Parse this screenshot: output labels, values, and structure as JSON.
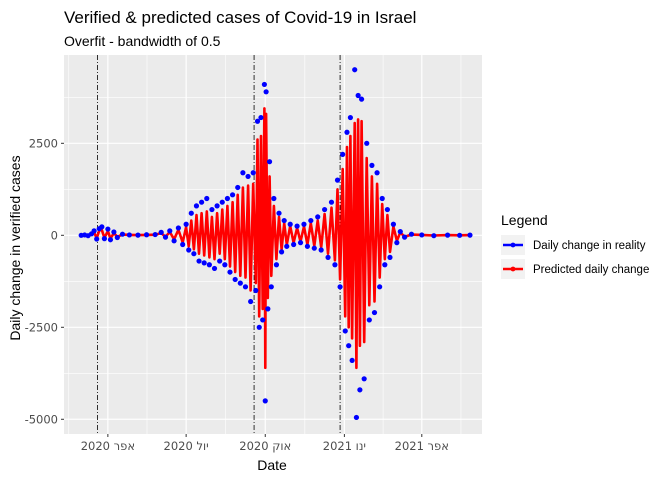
{
  "chart_data": {
    "type": "line",
    "title": "Verified & predicted cases of Covid-19 in Israel",
    "subtitle": "Overfit - bandwidth of 0.5",
    "xlabel": "Date",
    "ylabel": "Daily change in verified cases",
    "xlim": [
      "2020-02-10",
      "2021-06-10"
    ],
    "ylim": [
      -5400,
      4900
    ],
    "x_ticks": [
      {
        "date": "2020-04-01",
        "label": "אפר 2020"
      },
      {
        "date": "2020-07-01",
        "label": "יול 2020"
      },
      {
        "date": "2020-10-01",
        "label": "אוק 2020"
      },
      {
        "date": "2021-01-01",
        "label": "ינו 2021"
      },
      {
        "date": "2021-04-01",
        "label": "אפר 2021"
      }
    ],
    "y_ticks": [
      -5000,
      -2500,
      0,
      2500
    ],
    "vlines": [
      "2020-03-20",
      "2020-09-18",
      "2020-12-27"
    ],
    "grid": true,
    "legend": {
      "title": "Legend",
      "position": "right"
    },
    "series": [
      {
        "name": "Daily change in reality",
        "color": "#0000ff",
        "style": "points",
        "points": [
          [
            "2020-03-01",
            0
          ],
          [
            "2020-03-05",
            10
          ],
          [
            "2020-03-09",
            -10
          ],
          [
            "2020-03-13",
            40
          ],
          [
            "2020-03-16",
            120
          ],
          [
            "2020-03-19",
            -100
          ],
          [
            "2020-03-22",
            180
          ],
          [
            "2020-03-25",
            230
          ],
          [
            "2020-03-28",
            -90
          ],
          [
            "2020-04-01",
            170
          ],
          [
            "2020-04-04",
            -120
          ],
          [
            "2020-04-08",
            90
          ],
          [
            "2020-04-12",
            -60
          ],
          [
            "2020-04-18",
            30
          ],
          [
            "2020-04-26",
            10
          ],
          [
            "2020-05-06",
            5
          ],
          [
            "2020-05-16",
            15
          ],
          [
            "2020-05-26",
            20
          ],
          [
            "2020-06-02",
            80
          ],
          [
            "2020-06-07",
            -50
          ],
          [
            "2020-06-12",
            120
          ],
          [
            "2020-06-17",
            -150
          ],
          [
            "2020-06-22",
            200
          ],
          [
            "2020-06-27",
            -250
          ],
          [
            "2020-07-01",
            300
          ],
          [
            "2020-07-04",
            -400
          ],
          [
            "2020-07-07",
            600
          ],
          [
            "2020-07-10",
            -500
          ],
          [
            "2020-07-13",
            800
          ],
          [
            "2020-07-16",
            -700
          ],
          [
            "2020-07-19",
            900
          ],
          [
            "2020-07-22",
            -750
          ],
          [
            "2020-07-25",
            1000
          ],
          [
            "2020-07-28",
            -800
          ],
          [
            "2020-07-31",
            700
          ],
          [
            "2020-08-03",
            -900
          ],
          [
            "2020-08-06",
            800
          ],
          [
            "2020-08-09",
            -700
          ],
          [
            "2020-08-12",
            900
          ],
          [
            "2020-08-15",
            -800
          ],
          [
            "2020-08-18",
            1000
          ],
          [
            "2020-08-21",
            -1000
          ],
          [
            "2020-08-24",
            1100
          ],
          [
            "2020-08-27",
            -1200
          ],
          [
            "2020-08-30",
            1300
          ],
          [
            "2020-09-02",
            -1300
          ],
          [
            "2020-09-05",
            1700
          ],
          [
            "2020-09-08",
            -1400
          ],
          [
            "2020-09-11",
            1600
          ],
          [
            "2020-09-14",
            -1800
          ],
          [
            "2020-09-17",
            1700
          ],
          [
            "2020-09-20",
            -1500
          ],
          [
            "2020-09-22",
            3100
          ],
          [
            "2020-09-24",
            -2500
          ],
          [
            "2020-09-26",
            3200
          ],
          [
            "2020-09-28",
            -2300
          ],
          [
            "2020-09-30",
            4100
          ],
          [
            "2020-10-01",
            -4500
          ],
          [
            "2020-10-02",
            3900
          ],
          [
            "2020-10-04",
            -2000
          ],
          [
            "2020-10-06",
            2000
          ],
          [
            "2020-10-08",
            -1400
          ],
          [
            "2020-10-11",
            1000
          ],
          [
            "2020-10-14",
            -800
          ],
          [
            "2020-10-17",
            600
          ],
          [
            "2020-10-20",
            -450
          ],
          [
            "2020-10-23",
            400
          ],
          [
            "2020-10-26",
            -300
          ],
          [
            "2020-10-30",
            300
          ],
          [
            "2020-11-03",
            -250
          ],
          [
            "2020-11-07",
            250
          ],
          [
            "2020-11-11",
            -200
          ],
          [
            "2020-11-15",
            300
          ],
          [
            "2020-11-19",
            -300
          ],
          [
            "2020-11-23",
            400
          ],
          [
            "2020-11-27",
            -350
          ],
          [
            "2020-12-01",
            500
          ],
          [
            "2020-12-05",
            -400
          ],
          [
            "2020-12-09",
            700
          ],
          [
            "2020-12-13",
            -600
          ],
          [
            "2020-12-17",
            900
          ],
          [
            "2020-12-21",
            -800
          ],
          [
            "2020-12-24",
            1500
          ],
          [
            "2020-12-27",
            -1400
          ],
          [
            "2020-12-30",
            2200
          ],
          [
            "2021-01-02",
            -2600
          ],
          [
            "2021-01-04",
            2800
          ],
          [
            "2021-01-06",
            -3000
          ],
          [
            "2021-01-08",
            3200
          ],
          [
            "2021-01-10",
            -3400
          ],
          [
            "2021-01-13",
            4500
          ],
          [
            "2021-01-15",
            -4950
          ],
          [
            "2021-01-17",
            3800
          ],
          [
            "2021-01-19",
            -4200
          ],
          [
            "2021-01-21",
            3700
          ],
          [
            "2021-01-24",
            -3900
          ],
          [
            "2021-01-27",
            2500
          ],
          [
            "2021-01-30",
            -2300
          ],
          [
            "2021-02-02",
            1900
          ],
          [
            "2021-02-05",
            -2100
          ],
          [
            "2021-02-08",
            1700
          ],
          [
            "2021-02-11",
            -1400
          ],
          [
            "2021-02-14",
            1000
          ],
          [
            "2021-02-17",
            -800
          ],
          [
            "2021-02-20",
            700
          ],
          [
            "2021-02-23",
            -600
          ],
          [
            "2021-02-27",
            300
          ],
          [
            "2021-03-03",
            -200
          ],
          [
            "2021-03-07",
            100
          ],
          [
            "2021-03-12",
            -50
          ],
          [
            "2021-03-20",
            30
          ],
          [
            "2021-04-01",
            10
          ],
          [
            "2021-04-15",
            -10
          ],
          [
            "2021-05-01",
            5
          ],
          [
            "2021-05-15",
            0
          ],
          [
            "2021-05-27",
            5
          ]
        ]
      },
      {
        "name": "Predicted daily change",
        "color": "#ff0000",
        "style": "line",
        "points": [
          [
            "2020-03-01",
            0
          ],
          [
            "2020-03-05",
            5
          ],
          [
            "2020-03-09",
            -10
          ],
          [
            "2020-03-13",
            30
          ],
          [
            "2020-03-16",
            80
          ],
          [
            "2020-03-19",
            -80
          ],
          [
            "2020-03-22",
            130
          ],
          [
            "2020-03-25",
            150
          ],
          [
            "2020-03-28",
            -70
          ],
          [
            "2020-04-01",
            120
          ],
          [
            "2020-04-04",
            -90
          ],
          [
            "2020-04-08",
            60
          ],
          [
            "2020-04-12",
            -40
          ],
          [
            "2020-04-18",
            20
          ],
          [
            "2020-04-26",
            10
          ],
          [
            "2020-05-06",
            5
          ],
          [
            "2020-05-16",
            10
          ],
          [
            "2020-05-26",
            15
          ],
          [
            "2020-06-02",
            60
          ],
          [
            "2020-06-07",
            -40
          ],
          [
            "2020-06-12",
            90
          ],
          [
            "2020-06-17",
            -110
          ],
          [
            "2020-06-22",
            150
          ],
          [
            "2020-06-27",
            -190
          ],
          [
            "2020-07-01",
            220
          ],
          [
            "2020-07-04",
            -300
          ],
          [
            "2020-07-07",
            400
          ],
          [
            "2020-07-10",
            -380
          ],
          [
            "2020-07-13",
            550
          ],
          [
            "2020-07-16",
            -500
          ],
          [
            "2020-07-19",
            600
          ],
          [
            "2020-07-22",
            -550
          ],
          [
            "2020-07-25",
            650
          ],
          [
            "2020-07-28",
            -600
          ],
          [
            "2020-07-31",
            500
          ],
          [
            "2020-08-03",
            -650
          ],
          [
            "2020-08-06",
            600
          ],
          [
            "2020-08-09",
            -500
          ],
          [
            "2020-08-12",
            700
          ],
          [
            "2020-08-15",
            -650
          ],
          [
            "2020-08-18",
            800
          ],
          [
            "2020-08-21",
            -850
          ],
          [
            "2020-08-24",
            900
          ],
          [
            "2020-08-27",
            -1000
          ],
          [
            "2020-08-30",
            1100
          ],
          [
            "2020-09-02",
            -1100
          ],
          [
            "2020-09-05",
            1300
          ],
          [
            "2020-09-08",
            -1150
          ],
          [
            "2020-09-11",
            1350
          ],
          [
            "2020-09-14",
            -1500
          ],
          [
            "2020-09-17",
            1400
          ],
          [
            "2020-09-20",
            -1300
          ],
          [
            "2020-09-22",
            2600
          ],
          [
            "2020-09-24",
            -2200
          ],
          [
            "2020-09-26",
            2700
          ],
          [
            "2020-09-28",
            -2000
          ],
          [
            "2020-09-30",
            3450
          ],
          [
            "2020-10-01",
            -3600
          ],
          [
            "2020-10-02",
            3300
          ],
          [
            "2020-10-04",
            -1700
          ],
          [
            "2020-10-06",
            1600
          ],
          [
            "2020-10-08",
            -1100
          ],
          [
            "2020-10-11",
            800
          ],
          [
            "2020-10-14",
            -650
          ],
          [
            "2020-10-17",
            500
          ],
          [
            "2020-10-20",
            -380
          ],
          [
            "2020-10-23",
            330
          ],
          [
            "2020-10-26",
            -250
          ],
          [
            "2020-10-30",
            250
          ],
          [
            "2020-11-03",
            -200
          ],
          [
            "2020-11-07",
            200
          ],
          [
            "2020-11-11",
            -170
          ],
          [
            "2020-11-15",
            240
          ],
          [
            "2020-11-19",
            -250
          ],
          [
            "2020-11-23",
            330
          ],
          [
            "2020-11-27",
            -290
          ],
          [
            "2020-12-01",
            400
          ],
          [
            "2020-12-05",
            -330
          ],
          [
            "2020-12-09",
            580
          ],
          [
            "2020-12-13",
            -500
          ],
          [
            "2020-12-17",
            750
          ],
          [
            "2020-12-21",
            -680
          ],
          [
            "2020-12-24",
            1250
          ],
          [
            "2020-12-27",
            -1200
          ],
          [
            "2020-12-30",
            1800
          ],
          [
            "2021-01-02",
            -2200
          ],
          [
            "2021-01-04",
            2400
          ],
          [
            "2021-01-06",
            -2500
          ],
          [
            "2021-01-08",
            2700
          ],
          [
            "2021-01-10",
            -2800
          ],
          [
            "2021-01-13",
            3050
          ],
          [
            "2021-01-15",
            -3600
          ],
          [
            "2021-01-17",
            3150
          ],
          [
            "2021-01-19",
            -3000
          ],
          [
            "2021-01-21",
            3100
          ],
          [
            "2021-01-24",
            -2900
          ],
          [
            "2021-01-27",
            2100
          ],
          [
            "2021-01-30",
            -1900
          ],
          [
            "2021-02-02",
            1600
          ],
          [
            "2021-02-05",
            -1800
          ],
          [
            "2021-02-08",
            1400
          ],
          [
            "2021-02-11",
            -1150
          ],
          [
            "2021-02-14",
            850
          ],
          [
            "2021-02-17",
            -650
          ],
          [
            "2021-02-20",
            550
          ],
          [
            "2021-02-23",
            -450
          ],
          [
            "2021-02-27",
            240
          ],
          [
            "2021-03-03",
            -150
          ],
          [
            "2021-03-07",
            80
          ],
          [
            "2021-03-12",
            -40
          ],
          [
            "2021-03-20",
            20
          ],
          [
            "2021-04-01",
            10
          ],
          [
            "2021-04-15",
            -5
          ],
          [
            "2021-05-01",
            5
          ],
          [
            "2021-05-15",
            0
          ],
          [
            "2021-05-27",
            5
          ]
        ]
      }
    ]
  }
}
